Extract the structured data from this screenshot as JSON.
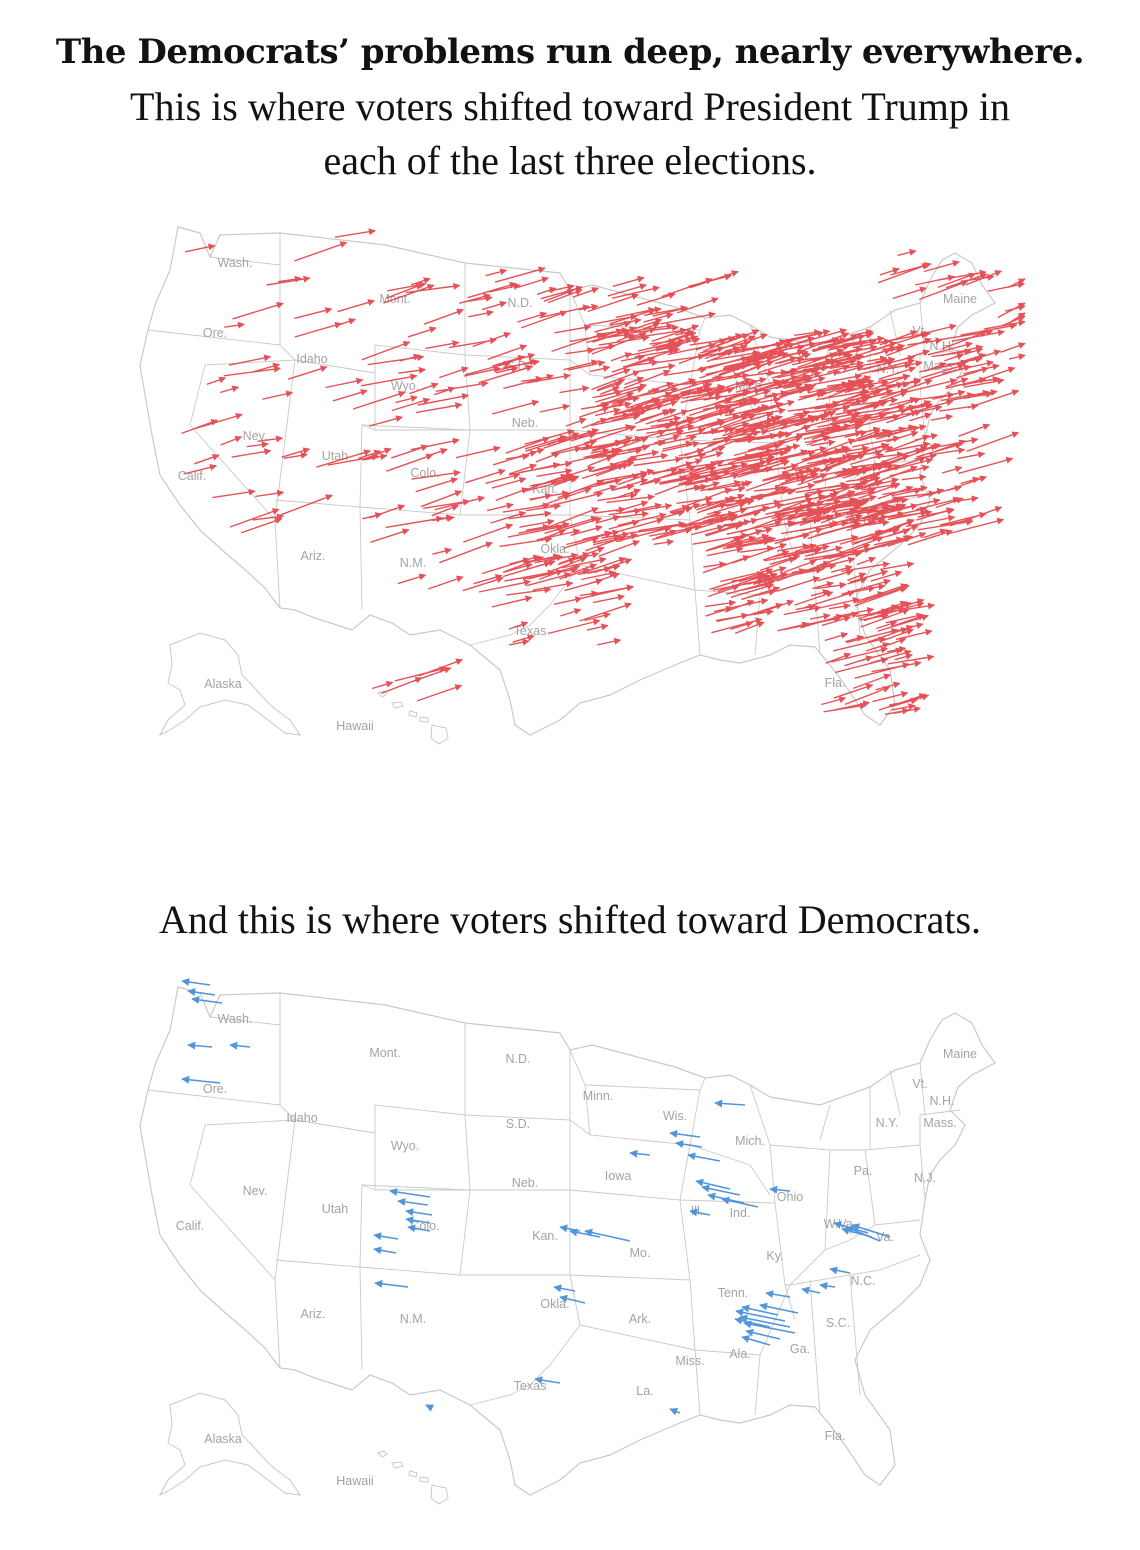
{
  "headline": {
    "title": "The Democrats’ problems run deep, nearly everywhere.",
    "sub_line1": "This is where voters shifted toward President Trump in",
    "sub_line2": "each of the last three elections."
  },
  "second_heading": "And this is where voters shifted toward Democrats.",
  "colors": {
    "trump_arrow": "#e0353b",
    "dem_arrow": "#4a90d9",
    "borders": "#c9c9c9",
    "state_labels": "#a3a3a3"
  },
  "maps": [
    {
      "id": "trump",
      "arrow_direction": "right",
      "arrow_density": "dense in Midwest, South, Northeast; sparse in West",
      "state_labels": [
        "Wash.",
        "Mont.",
        "N.D.",
        "Maine",
        "Ore.",
        "Idaho",
        "S.D.",
        "Vt.",
        "N.H.",
        "N.Y.",
        "Mass.",
        "Wyo.",
        "Mich.",
        "Neb.",
        "Nev.",
        "Utah",
        "Calif.",
        "Colo.",
        "Kan.",
        "N.C.",
        "Ariz.",
        "N.M.",
        "Okla.",
        "Texas",
        "Fla.",
        "Alaska",
        "Hawaii"
      ]
    },
    {
      "id": "dem",
      "arrow_direction": "left",
      "state_labels": [
        "Wash.",
        "Mont.",
        "N.D.",
        "Maine",
        "Ore.",
        "Minn.",
        "Vt.",
        "N.H.",
        "Idaho",
        "Wis.",
        "S.D.",
        "N.Y.",
        "Mass.",
        "Mich.",
        "Wyo.",
        "Iowa",
        "Pa.",
        "Nev.",
        "Neb.",
        "Ohio",
        "N.J.",
        "Ill.",
        "Ind.",
        "Utah",
        "Calif.",
        "Colo.",
        "W.Va.",
        "Kan.",
        "Mo.",
        "Ky.",
        "Va.",
        "N.C.",
        "Tenn.",
        "Okla.",
        "Ariz.",
        "N.M.",
        "Ark.",
        "S.C.",
        "Ga.",
        "Miss.",
        "Ala.",
        "Texas",
        "La.",
        "Fla.",
        "Alaska",
        "Hawaii"
      ]
    }
  ]
}
